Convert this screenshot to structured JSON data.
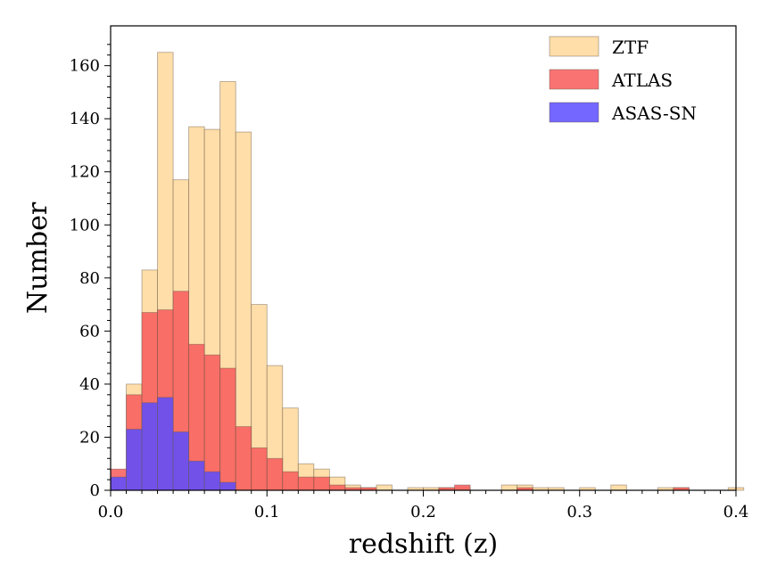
{
  "chart_data": {
    "type": "bar",
    "subtype": "overlaid-histogram",
    "title": "",
    "xlabel": "redshift (z)",
    "ylabel": "Number",
    "xlim": [
      0.0,
      0.4
    ],
    "ylim": [
      0,
      175
    ],
    "bin_width": 0.01,
    "xticks": [
      0.0,
      0.1,
      0.2,
      0.3,
      0.4
    ],
    "xtick_labels": [
      "0.0",
      "0.1",
      "0.2",
      "0.3",
      "0.4"
    ],
    "yticks": [
      0,
      20,
      40,
      60,
      80,
      100,
      120,
      140,
      160
    ],
    "ytick_labels": [
      "0",
      "20",
      "40",
      "60",
      "80",
      "100",
      "120",
      "140",
      "160"
    ],
    "grid": false,
    "legend_position": "top-right",
    "series": [
      {
        "name": "ZTF",
        "color": "#ffd89a",
        "bins": [
          {
            "x": 0.01,
            "value": 40
          },
          {
            "x": 0.02,
            "value": 83
          },
          {
            "x": 0.03,
            "value": 165
          },
          {
            "x": 0.04,
            "value": 117
          },
          {
            "x": 0.05,
            "value": 137
          },
          {
            "x": 0.06,
            "value": 136
          },
          {
            "x": 0.07,
            "value": 154
          },
          {
            "x": 0.08,
            "value": 135
          },
          {
            "x": 0.09,
            "value": 70
          },
          {
            "x": 0.1,
            "value": 47
          },
          {
            "x": 0.11,
            "value": 31
          },
          {
            "x": 0.12,
            "value": 10
          },
          {
            "x": 0.13,
            "value": 8
          },
          {
            "x": 0.14,
            "value": 5
          },
          {
            "x": 0.15,
            "value": 2
          },
          {
            "x": 0.16,
            "value": 1
          },
          {
            "x": 0.17,
            "value": 2
          },
          {
            "x": 0.19,
            "value": 1
          },
          {
            "x": 0.2,
            "value": 1
          },
          {
            "x": 0.21,
            "value": 1
          },
          {
            "x": 0.22,
            "value": 1
          },
          {
            "x": 0.25,
            "value": 2
          },
          {
            "x": 0.26,
            "value": 2
          },
          {
            "x": 0.27,
            "value": 1
          },
          {
            "x": 0.28,
            "value": 1
          },
          {
            "x": 0.3,
            "value": 1
          },
          {
            "x": 0.32,
            "value": 2
          },
          {
            "x": 0.35,
            "value": 1
          },
          {
            "x": 0.36,
            "value": 1
          },
          {
            "x": 0.395,
            "value": 1
          }
        ]
      },
      {
        "name": "ATLAS",
        "color": "#f85a5a",
        "bins": [
          {
            "x": 0.0,
            "value": 8
          },
          {
            "x": 0.01,
            "value": 36
          },
          {
            "x": 0.02,
            "value": 67
          },
          {
            "x": 0.03,
            "value": 68
          },
          {
            "x": 0.04,
            "value": 75
          },
          {
            "x": 0.05,
            "value": 55
          },
          {
            "x": 0.06,
            "value": 51
          },
          {
            "x": 0.07,
            "value": 46
          },
          {
            "x": 0.08,
            "value": 24
          },
          {
            "x": 0.09,
            "value": 16
          },
          {
            "x": 0.1,
            "value": 12
          },
          {
            "x": 0.11,
            "value": 7
          },
          {
            "x": 0.12,
            "value": 5
          },
          {
            "x": 0.13,
            "value": 5
          },
          {
            "x": 0.14,
            "value": 2
          },
          {
            "x": 0.15,
            "value": 1
          },
          {
            "x": 0.16,
            "value": 1
          },
          {
            "x": 0.21,
            "value": 1
          },
          {
            "x": 0.22,
            "value": 2
          },
          {
            "x": 0.26,
            "value": 1
          },
          {
            "x": 0.36,
            "value": 1
          }
        ]
      },
      {
        "name": "ASAS-SN",
        "color": "#5a4cff",
        "bins": [
          {
            "x": 0.0,
            "value": 5
          },
          {
            "x": 0.01,
            "value": 23
          },
          {
            "x": 0.02,
            "value": 33
          },
          {
            "x": 0.03,
            "value": 35
          },
          {
            "x": 0.04,
            "value": 22
          },
          {
            "x": 0.05,
            "value": 11
          },
          {
            "x": 0.06,
            "value": 7
          },
          {
            "x": 0.07,
            "value": 3
          }
        ]
      }
    ]
  }
}
